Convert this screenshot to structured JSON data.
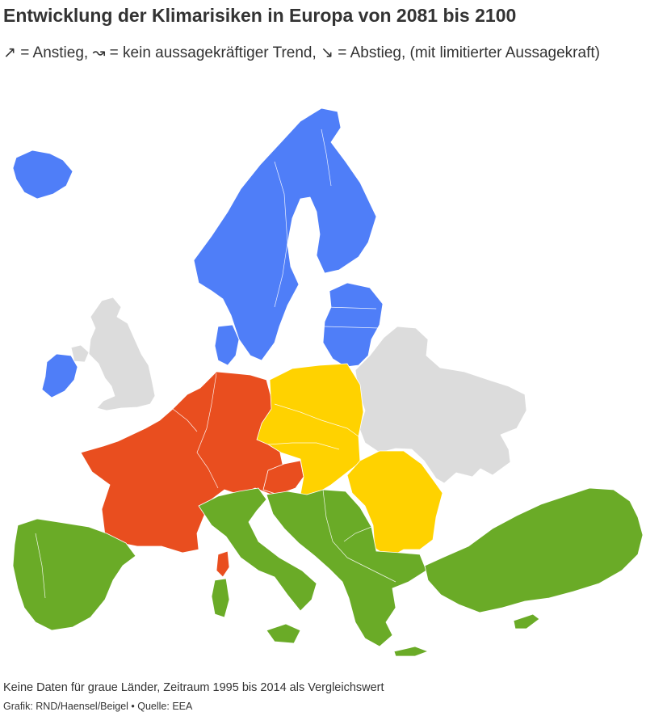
{
  "header": {
    "title": "Entwicklung der Klimarisiken in Europa von 2081 bis 2100",
    "subtitle": "↗ = Anstieg, ↝ = kein aussagekräftiger Trend, ↘ = Abstieg, (mit limitierter Aussagekraft)"
  },
  "footer": {
    "note": "Keine Daten für graue Länder, Zeitraum 1995 bis 2014 als Vergleichswert",
    "source": "Grafik: RND/Haensel/Beigel • Quelle: EEA"
  },
  "colors": {
    "blue": "#4f7ef8",
    "orange": "#e94e1f",
    "yellow": "#ffd200",
    "green": "#6aab27",
    "gray": "#dcdcdc"
  }
}
